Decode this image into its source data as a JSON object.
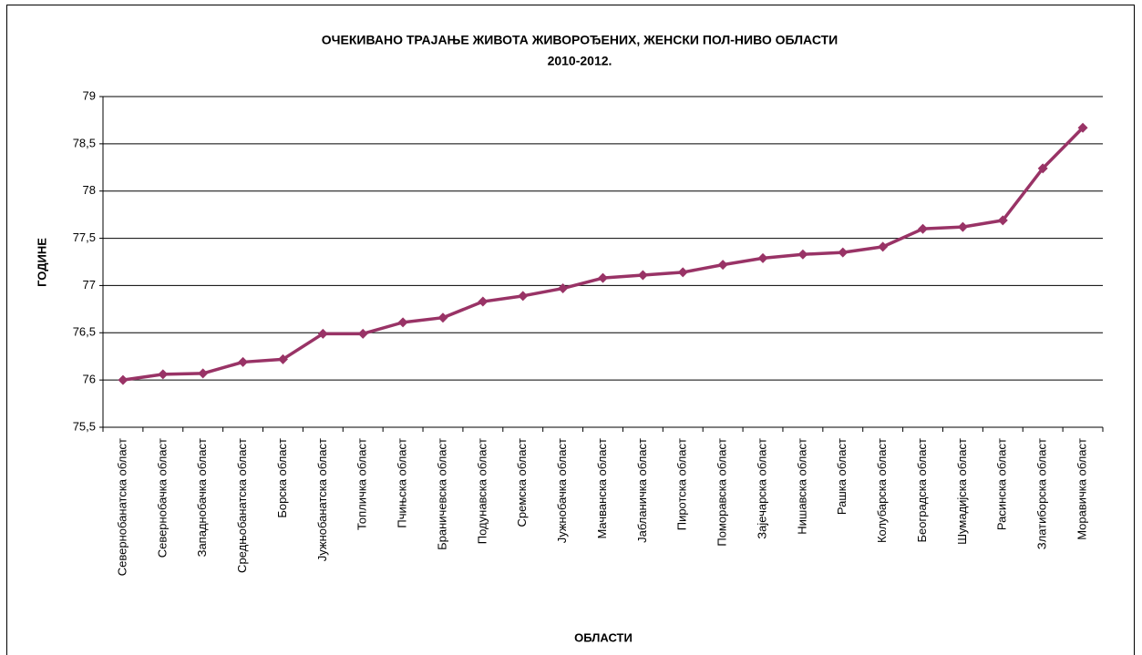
{
  "chart_data": {
    "type": "line",
    "title": "ОЧЕКИВАНО ТРАЈАЊЕ ЖИВОТА ЖИВОРОЂЕНИХ, ЖЕНСКИ ПОЛ-НИВО ОБЛАСТИ",
    "subtitle": "2010-2012.",
    "x_label": "ОБЛАСТИ",
    "y_label": "ГОДИНЕ",
    "categories": [
      "Севернобанатска област",
      "Севернобачка област",
      "Западнобачка област",
      "Средњобанатска област",
      "Борска област",
      "Јужнобанатска област",
      "Топличка област",
      "Пчињска област",
      "Браничевска област",
      "Подунавска област",
      "Сремска област",
      "Јужнобачка област",
      "Мачванска област",
      "Јабланичка област",
      "Пиротска област",
      "Поморавска област",
      "Зајечарска област",
      "Нишавска област",
      "Рашка област",
      "Колубарска област",
      "Београдска област",
      "Шумадијска област",
      "Расинска област",
      "Златиборска област",
      "Моравичка област"
    ],
    "values": [
      76.0,
      76.06,
      76.07,
      76.19,
      76.22,
      76.49,
      76.49,
      76.61,
      76.66,
      76.83,
      76.89,
      76.97,
      77.08,
      77.11,
      77.14,
      77.22,
      77.29,
      77.33,
      77.35,
      77.41,
      77.6,
      77.62,
      77.69,
      78.24,
      78.67
    ],
    "color": "#993366",
    "ylim": [
      75.5,
      79
    ],
    "yticks": [
      {
        "value": 75.5,
        "label": "75,5"
      },
      76,
      {
        "value": 76.5,
        "label": "76,5"
      },
      77,
      {
        "value": 77.5,
        "label": "77,5"
      },
      78,
      {
        "value": 78.5,
        "label": "78,5"
      },
      79
    ],
    "grid": true
  }
}
